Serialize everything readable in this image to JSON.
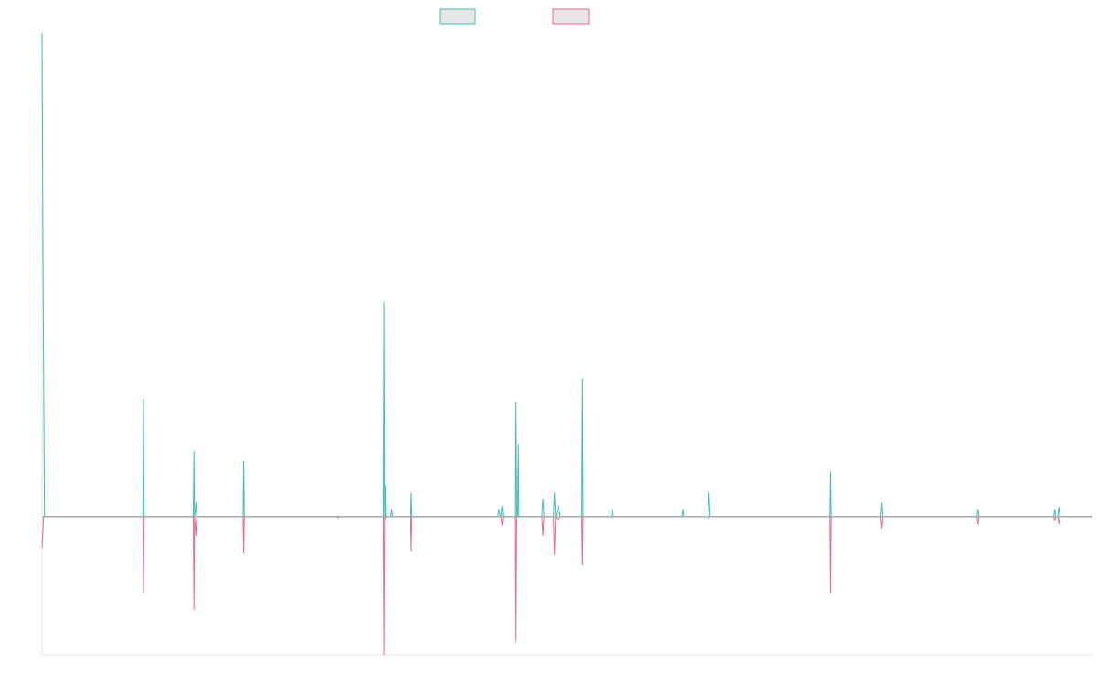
{
  "chart_data": {
    "type": "line",
    "title": "",
    "xlabel": "",
    "ylabel": "",
    "legend": {
      "position": "top-center",
      "entries": [
        "",
        ""
      ]
    },
    "grid": false,
    "xlim": [
      0,
      1000
    ],
    "ylim": [
      -0.4,
      1.4
    ],
    "series": [
      {
        "color": "#3fbfb5",
        "points": [
          [
            0,
            1.4
          ],
          [
            1,
            0.7
          ],
          [
            2.3,
            0
          ],
          [
            4,
            0
          ],
          [
            96,
            0
          ],
          [
            96.3,
            0.16
          ],
          [
            96.6,
            0.34
          ],
          [
            96.9,
            0.16
          ],
          [
            97.2,
            0
          ],
          [
            144,
            0
          ],
          [
            144.3,
            0.09
          ],
          [
            144.6,
            0.19
          ],
          [
            144.9,
            0.09
          ],
          [
            145.2,
            0
          ],
          [
            146.2,
            0.02
          ],
          [
            146.6,
            0.04
          ],
          [
            147,
            0.02
          ],
          [
            147.4,
            0
          ],
          [
            153,
            0
          ],
          [
            163,
            0
          ],
          [
            191.4,
            0
          ],
          [
            191.7,
            0.08
          ],
          [
            192,
            0.16
          ],
          [
            192.3,
            0.08
          ],
          [
            192.6,
            0
          ],
          [
            281,
            0
          ],
          [
            282,
            0.002
          ],
          [
            283,
            0
          ],
          [
            325,
            0
          ],
          [
            325.3,
            0.31
          ],
          [
            325.6,
            0.62
          ],
          [
            325.9,
            0.31
          ],
          [
            326.2,
            0
          ],
          [
            326.8,
            0.09
          ],
          [
            327.1,
            0
          ],
          [
            332,
            0
          ],
          [
            332.5,
            0.01
          ],
          [
            333,
            0.02
          ],
          [
            333.5,
            0.01
          ],
          [
            334,
            0
          ],
          [
            351,
            0
          ],
          [
            351.3,
            0.035
          ],
          [
            351.6,
            0.07
          ],
          [
            351.9,
            0.035
          ],
          [
            352.2,
            0
          ],
          [
            369,
            0
          ],
          [
            378,
            0
          ],
          [
            434,
            0
          ],
          [
            434.5,
            0.01
          ],
          [
            435,
            0.02
          ],
          [
            435.5,
            0.01
          ],
          [
            437,
            0
          ],
          [
            437.5,
            0.015
          ],
          [
            438,
            0.03
          ],
          [
            438.5,
            0.015
          ],
          [
            439,
            0
          ],
          [
            450,
            0
          ],
          [
            450.3,
            0.17
          ],
          [
            450.6,
            0.33
          ],
          [
            450.9,
            0.17
          ],
          [
            451.2,
            0
          ],
          [
            453,
            0
          ],
          [
            453.3,
            0.11
          ],
          [
            453.6,
            0.21
          ],
          [
            453.9,
            0.11
          ],
          [
            454.2,
            0
          ],
          [
            476,
            0
          ],
          [
            476.5,
            0.03
          ],
          [
            477,
            0.05
          ],
          [
            477.5,
            0.03
          ],
          [
            478,
            0
          ],
          [
            487,
            0
          ],
          [
            487.5,
            0.035
          ],
          [
            488,
            0.07
          ],
          [
            488.5,
            0.035
          ],
          [
            489,
            0
          ],
          [
            490.5,
            0.015
          ],
          [
            491.5,
            0.03
          ],
          [
            492.5,
            0.015
          ],
          [
            493.5,
            0
          ],
          [
            504,
            0
          ],
          [
            514,
            0
          ],
          [
            514.3,
            0.2
          ],
          [
            514.6,
            0.4
          ],
          [
            514.9,
            0.2
          ],
          [
            515.2,
            0
          ],
          [
            542,
            0
          ],
          [
            542.5,
            0.01
          ],
          [
            543,
            0.02
          ],
          [
            543.5,
            0.01
          ],
          [
            544,
            0
          ],
          [
            587,
            0
          ],
          [
            609,
            0
          ],
          [
            609.5,
            0.01
          ],
          [
            610,
            0.02
          ],
          [
            610.5,
            0.01
          ],
          [
            611,
            0
          ],
          [
            634,
            0
          ],
          [
            634.5,
            0.035
          ],
          [
            635,
            0.07
          ],
          [
            635.5,
            0.035
          ],
          [
            636,
            0
          ],
          [
            646,
            0
          ],
          [
            700,
            0
          ],
          [
            732,
            0
          ],
          [
            750,
            0
          ],
          [
            750.3,
            0.065
          ],
          [
            750.6,
            0.13
          ],
          [
            750.9,
            0.065
          ],
          [
            751.2,
            0
          ],
          [
            752,
            0
          ],
          [
            769,
            0
          ],
          [
            798.5,
            0
          ],
          [
            799,
            0.02
          ],
          [
            799.5,
            0.04
          ],
          [
            800,
            0.02
          ],
          [
            800.5,
            0
          ],
          [
            845,
            0
          ],
          [
            890,
            0
          ],
          [
            890.5,
            0.01
          ],
          [
            891,
            0.02
          ],
          [
            891.5,
            0.01
          ],
          [
            892,
            0
          ],
          [
            963,
            0
          ],
          [
            963.5,
            0.01
          ],
          [
            964,
            0.02
          ],
          [
            964.5,
            0.01
          ],
          [
            965,
            0
          ],
          [
            967,
            0
          ],
          [
            967.5,
            0.014
          ],
          [
            968,
            0.028
          ],
          [
            968.5,
            0.014
          ],
          [
            969,
            0
          ],
          [
            1000,
            0
          ]
        ]
      },
      {
        "color": "#f0668c",
        "points": [
          [
            0,
            -0.09
          ],
          [
            1.5,
            0
          ],
          [
            96,
            0
          ],
          [
            96.3,
            -0.11
          ],
          [
            96.6,
            -0.22
          ],
          [
            96.9,
            -0.11
          ],
          [
            97.2,
            0
          ],
          [
            144,
            0
          ],
          [
            144.3,
            -0.13
          ],
          [
            144.6,
            -0.27
          ],
          [
            144.9,
            -0.13
          ],
          [
            145.2,
            0
          ],
          [
            146,
            -0.03
          ],
          [
            146.4,
            -0.055
          ],
          [
            146.8,
            -0.03
          ],
          [
            147.2,
            0
          ],
          [
            191.4,
            0
          ],
          [
            191.7,
            -0.053
          ],
          [
            192,
            -0.105
          ],
          [
            192.3,
            -0.053
          ],
          [
            192.6,
            0
          ],
          [
            281,
            0
          ],
          [
            282,
            -0.003
          ],
          [
            283,
            0
          ],
          [
            325,
            0
          ],
          [
            325.3,
            -0.2
          ],
          [
            325.6,
            -0.4
          ],
          [
            325.9,
            -0.2
          ],
          [
            326.2,
            0
          ],
          [
            326.7,
            -0.005
          ],
          [
            327.2,
            0
          ],
          [
            351,
            0
          ],
          [
            351.3,
            -0.05
          ],
          [
            351.6,
            -0.1
          ],
          [
            351.9,
            -0.05
          ],
          [
            352.2,
            0
          ],
          [
            437,
            0
          ],
          [
            437.5,
            -0.013
          ],
          [
            438,
            -0.025
          ],
          [
            438.5,
            -0.013
          ],
          [
            439,
            0
          ],
          [
            450,
            0
          ],
          [
            450.3,
            -0.18
          ],
          [
            450.6,
            -0.36
          ],
          [
            450.9,
            -0.18
          ],
          [
            451.2,
            0
          ],
          [
            476,
            0
          ],
          [
            476.5,
            -0.027
          ],
          [
            477,
            -0.055
          ],
          [
            477.5,
            -0.027
          ],
          [
            478,
            0
          ],
          [
            487,
            0
          ],
          [
            487.5,
            -0.055
          ],
          [
            488,
            -0.11
          ],
          [
            488.5,
            -0.055
          ],
          [
            489,
            0
          ],
          [
            490.5,
            -0.004
          ],
          [
            491.5,
            -0.008
          ],
          [
            492.5,
            -0.004
          ],
          [
            493.5,
            0
          ],
          [
            514,
            0
          ],
          [
            514.3,
            -0.07
          ],
          [
            514.6,
            -0.14
          ],
          [
            514.9,
            -0.07
          ],
          [
            515.2,
            0
          ],
          [
            542,
            0
          ],
          [
            542.5,
            -0.002
          ],
          [
            543,
            0
          ],
          [
            634,
            0
          ],
          [
            634.5,
            -0.004
          ],
          [
            635,
            0
          ],
          [
            750,
            0
          ],
          [
            750.3,
            -0.11
          ],
          [
            750.6,
            -0.22
          ],
          [
            750.9,
            -0.11
          ],
          [
            751.2,
            0
          ],
          [
            798.5,
            0
          ],
          [
            799,
            -0.017
          ],
          [
            799.5,
            -0.033
          ],
          [
            800,
            -0.017
          ],
          [
            800.5,
            0
          ],
          [
            890,
            0
          ],
          [
            890.5,
            -0.011
          ],
          [
            891,
            -0.022
          ],
          [
            891.5,
            -0.011
          ],
          [
            892,
            0
          ],
          [
            963,
            0
          ],
          [
            963.5,
            -0.006
          ],
          [
            964,
            -0.012
          ],
          [
            964.5,
            -0.006
          ],
          [
            965,
            0
          ],
          [
            967,
            0
          ],
          [
            967.5,
            -0.01
          ],
          [
            968,
            -0.02
          ],
          [
            968.5,
            -0.01
          ],
          [
            969,
            0
          ],
          [
            1000,
            0
          ]
        ]
      }
    ]
  }
}
